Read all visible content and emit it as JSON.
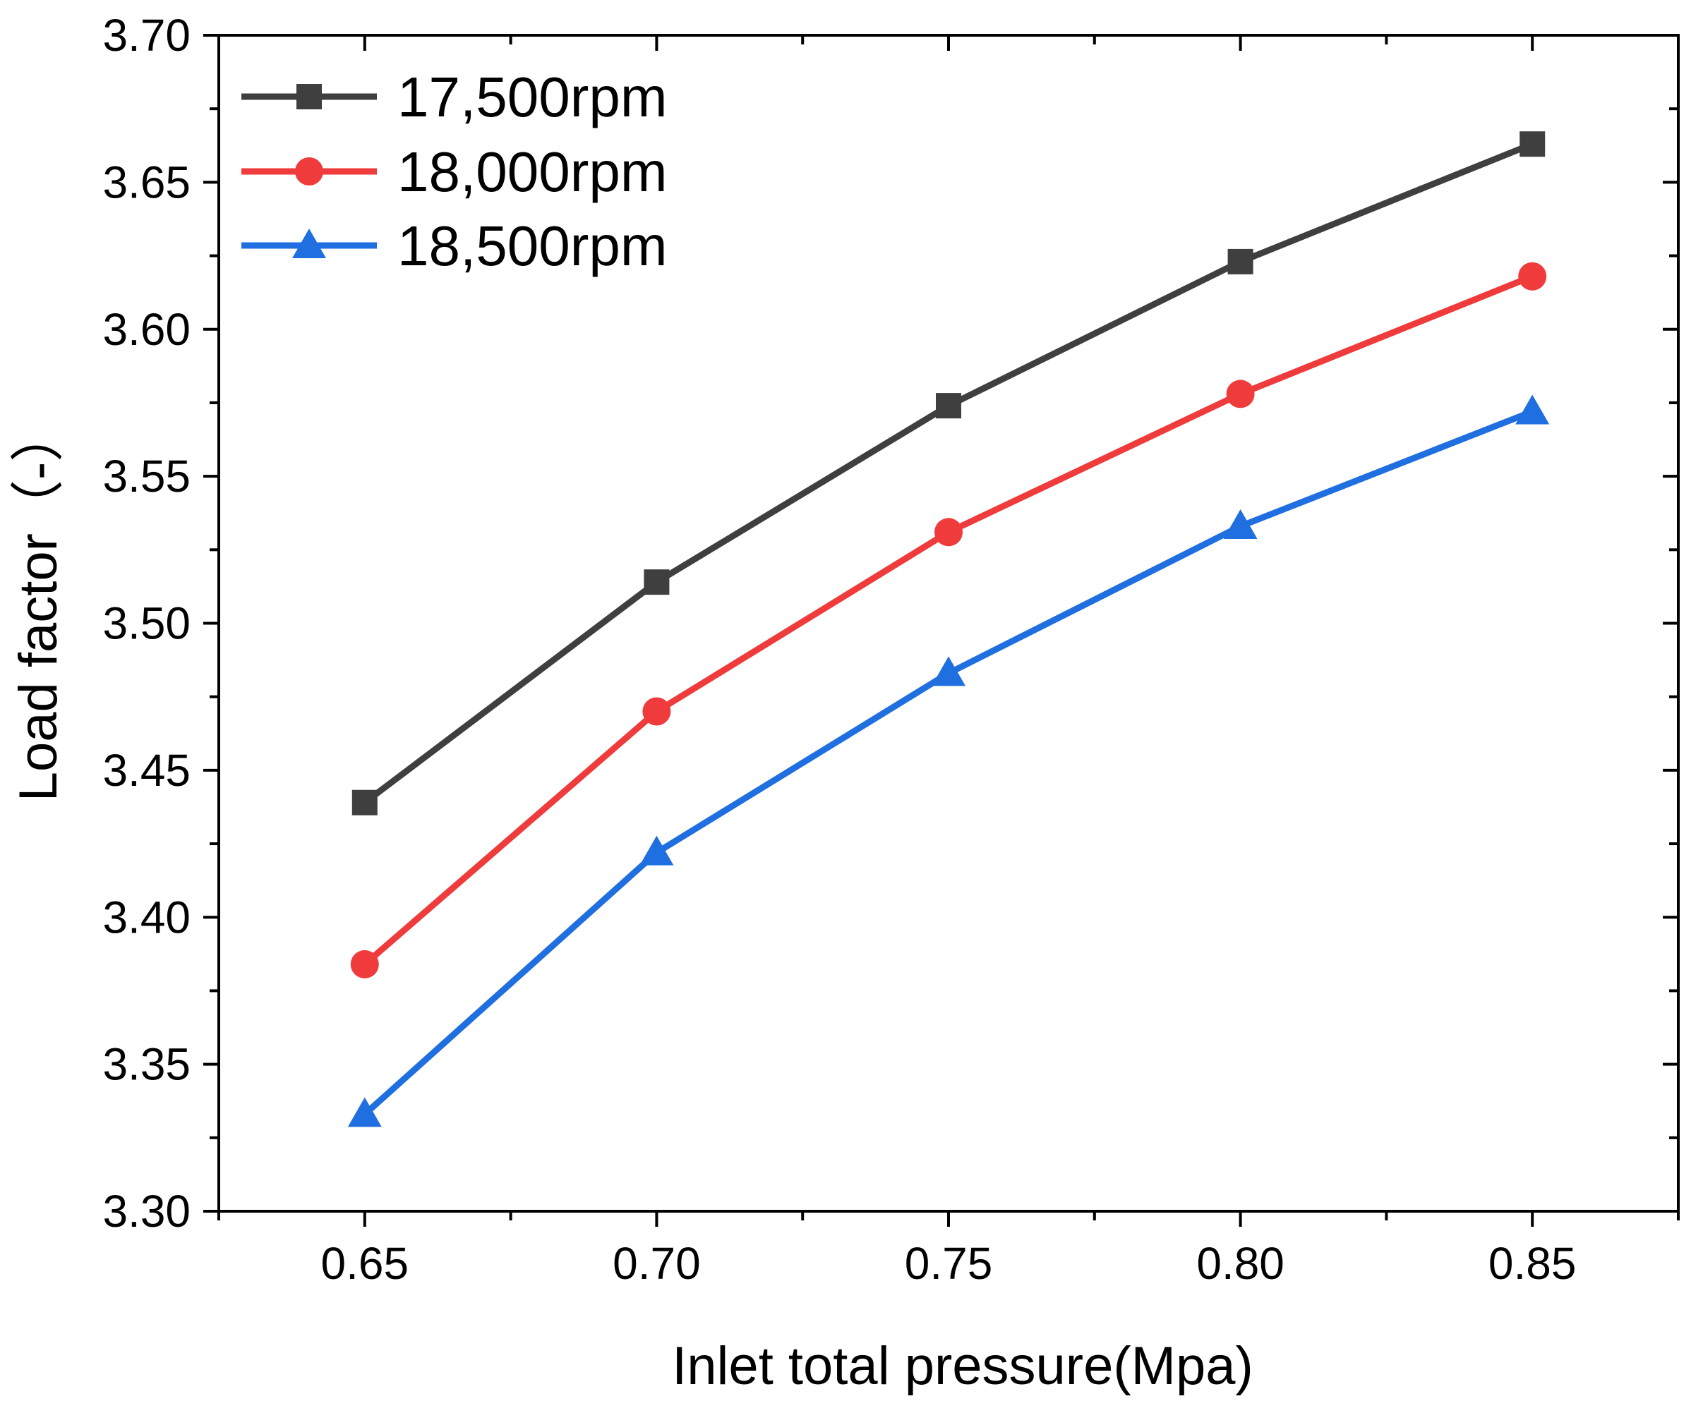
{
  "chart_data": {
    "type": "line",
    "title": "",
    "xlabel": "Inlet total pressure(Mpa)",
    "ylabel": "Load factor（-）",
    "xlim": [
      0.625,
      0.875
    ],
    "ylim": [
      3.3,
      3.7
    ],
    "x_ticks": [
      0.65,
      0.7,
      0.75,
      0.8,
      0.85
    ],
    "x_tick_labels": [
      "0.65",
      "0.70",
      "0.75",
      "0.80",
      "0.85"
    ],
    "x_minor_ticks": [
      0.625,
      0.675,
      0.725,
      0.775,
      0.825,
      0.875
    ],
    "y_ticks": [
      3.3,
      3.35,
      3.4,
      3.45,
      3.5,
      3.55,
      3.6,
      3.65,
      3.7
    ],
    "y_tick_labels": [
      "3.30",
      "3.35",
      "3.40",
      "3.45",
      "3.50",
      "3.55",
      "3.60",
      "3.65",
      "3.70"
    ],
    "y_minor_ticks": [
      3.325,
      3.375,
      3.425,
      3.475,
      3.525,
      3.575,
      3.625,
      3.675
    ],
    "grid": false,
    "legend_position": "top-left",
    "x": [
      0.65,
      0.7,
      0.75,
      0.8,
      0.85
    ],
    "series": [
      {
        "name": "17,500rpm",
        "color": "#3f3f3f",
        "marker": "square",
        "values": [
          3.439,
          3.514,
          3.574,
          3.623,
          3.663
        ]
      },
      {
        "name": "18,000rpm",
        "color": "#ef3b3b",
        "marker": "circle",
        "values": [
          3.384,
          3.47,
          3.531,
          3.578,
          3.618
        ]
      },
      {
        "name": "18,500rpm",
        "color": "#1f6fe0",
        "marker": "triangle",
        "values": [
          3.333,
          3.422,
          3.483,
          3.533,
          3.572
        ]
      }
    ]
  }
}
